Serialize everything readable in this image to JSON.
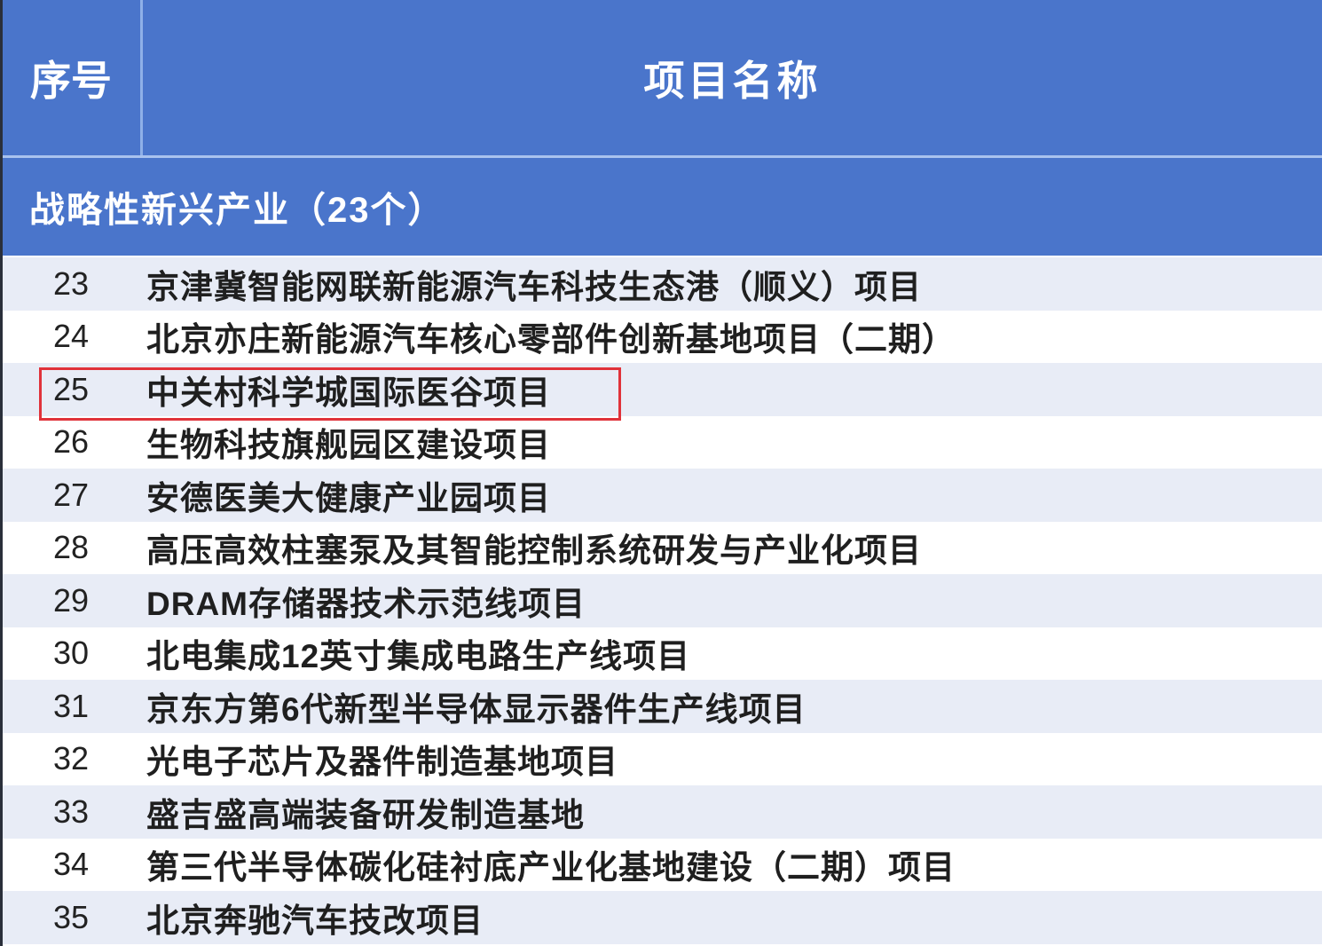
{
  "header": {
    "seq_label": "序号",
    "name_label": "项目名称"
  },
  "category": {
    "label": "战略性新兴产业（23个）"
  },
  "colors": {
    "header_bg": "#4a75cb",
    "alt_row_bg": "#e8ecf6",
    "highlight_border": "#e0323a"
  },
  "highlighted_row": "25",
  "rows": [
    {
      "num": "23",
      "name": "京津冀智能网联新能源汽车科技生态港（顺义）项目"
    },
    {
      "num": "24",
      "name": "北京亦庄新能源汽车核心零部件创新基地项目（二期）"
    },
    {
      "num": "25",
      "name": "中关村科学城国际医谷项目"
    },
    {
      "num": "26",
      "name": "生物科技旗舰园区建设项目"
    },
    {
      "num": "27",
      "name": "安德医美大健康产业园项目"
    },
    {
      "num": "28",
      "name": "高压高效柱塞泵及其智能控制系统研发与产业化项目"
    },
    {
      "num": "29",
      "name": "DRAM存储器技术示范线项目"
    },
    {
      "num": "30",
      "name": "北电集成12英寸集成电路生产线项目"
    },
    {
      "num": "31",
      "name": "京东方第6代新型半导体显示器件生产线项目"
    },
    {
      "num": "32",
      "name": "光电子芯片及器件制造基地项目"
    },
    {
      "num": "33",
      "name": "盛吉盛高端装备研发制造基地"
    },
    {
      "num": "34",
      "name": "第三代半导体碳化硅衬底产业化基地建设（二期）项目"
    },
    {
      "num": "35",
      "name": "北京奔驰汽车技改项目"
    }
  ]
}
